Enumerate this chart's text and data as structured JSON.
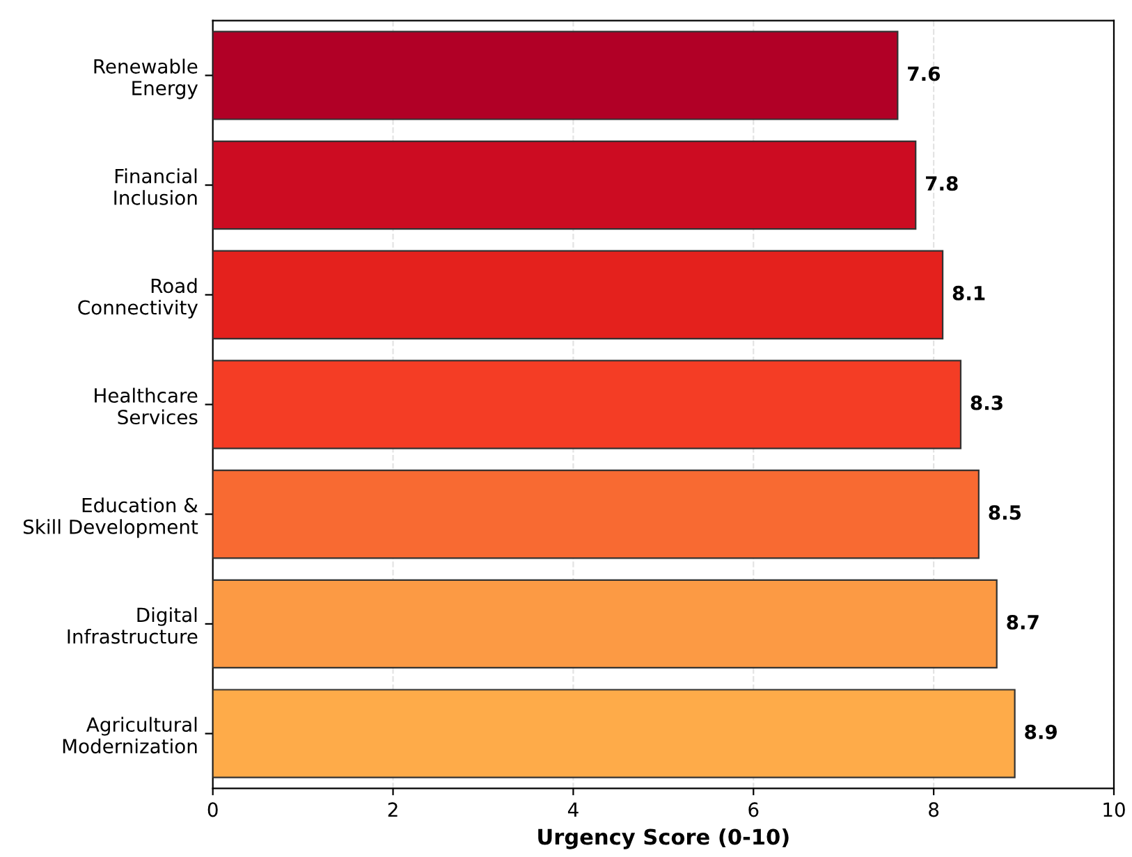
{
  "chart_data": {
    "type": "bar",
    "orientation": "horizontal",
    "categories": [
      "Renewable\nEnergy",
      "Financial\nInclusion",
      "Road\nConnectivity",
      "Healthcare\nServices",
      "Education &\nSkill Development",
      "Digital\nInfrastructure",
      "Agricultural\nModernization"
    ],
    "values": [
      7.6,
      7.8,
      8.1,
      8.3,
      8.5,
      8.7,
      8.9
    ],
    "colors": [
      "#b10026",
      "#cc0c22",
      "#e4211d",
      "#f43d25",
      "#f86a32",
      "#fc9a44",
      "#feab49"
    ],
    "xlabel": "Urgency Score (0-10)",
    "xlim": [
      0,
      10
    ],
    "xticks": [
      0,
      2,
      4,
      6,
      8,
      10
    ],
    "grid": "x",
    "data_labels": true
  }
}
